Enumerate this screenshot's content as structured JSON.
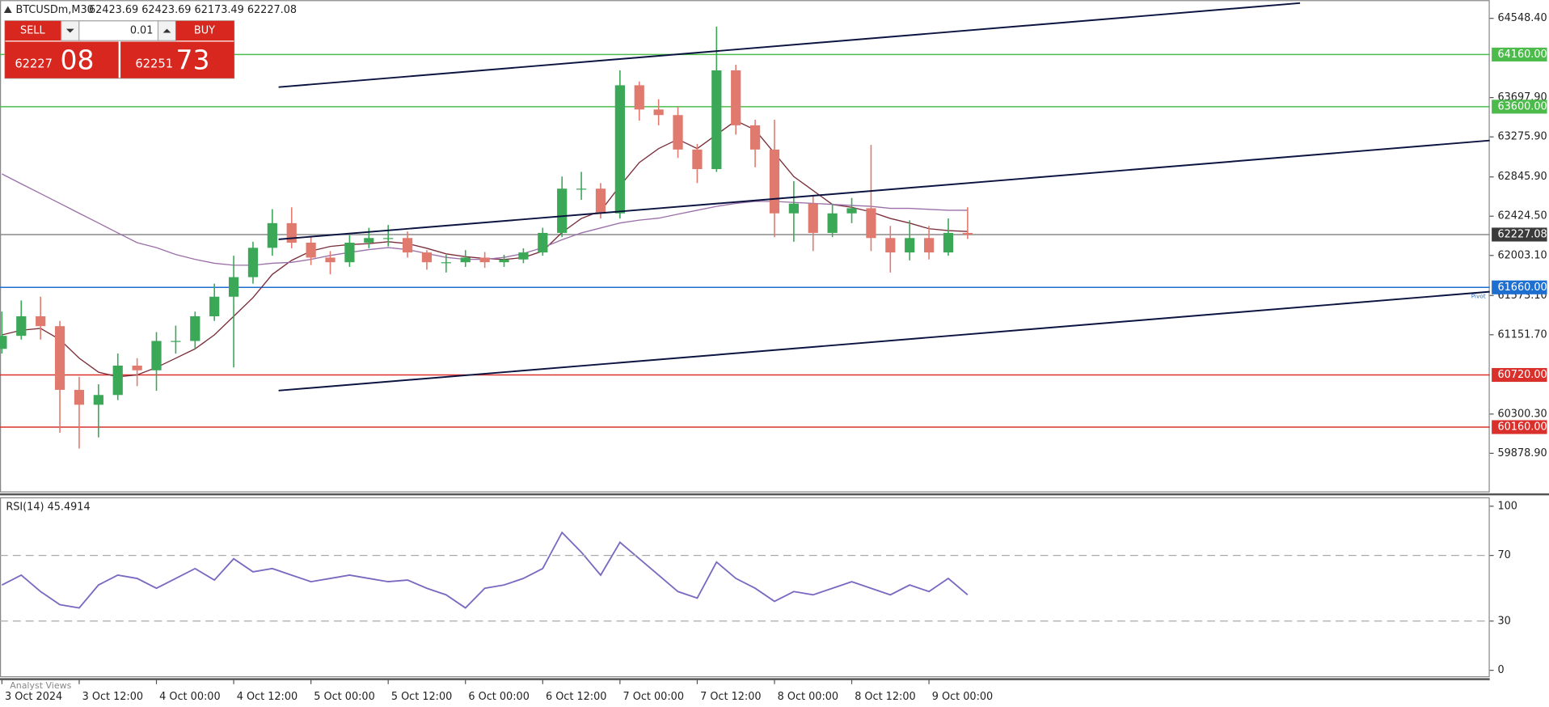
{
  "chart_data": [
    {
      "type": "candlestick",
      "title": "BTCUSDm,M30",
      "subtitle": "62423.69 62423.69 62173.49 62227.08",
      "up_color": "#3aa856",
      "down_color": "#e07a6e",
      "x": [
        0,
        3,
        6,
        9,
        12,
        15,
        18,
        21,
        24,
        27,
        30,
        33,
        36,
        39,
        42,
        45,
        48,
        51,
        54,
        57,
        60,
        63,
        66,
        69,
        72,
        75,
        78,
        81,
        84,
        87,
        90,
        93,
        96,
        99,
        102,
        105,
        108,
        111,
        114,
        117,
        120,
        123,
        126,
        129,
        132,
        135,
        138,
        141,
        144,
        147,
        150
      ],
      "open": [
        61000,
        61140,
        61350,
        61244,
        60560,
        60400,
        60505,
        60820,
        60770,
        61085,
        61085,
        61350,
        61560,
        61770,
        62085,
        62350,
        62140,
        61980,
        61930,
        62140,
        62190,
        62190,
        62035,
        61930,
        61930,
        61980,
        61930,
        61960,
        62035,
        62245,
        62720,
        62720,
        62455,
        63830,
        63570,
        63510,
        63140,
        62930,
        63990,
        63400,
        63140,
        62455,
        62560,
        62245,
        62455,
        62510,
        62190,
        62035,
        62190,
        62035,
        62245
      ],
      "high": [
        61400,
        61520,
        61560,
        61300,
        60700,
        60620,
        60950,
        60900,
        61180,
        61250,
        61400,
        61700,
        62000,
        62150,
        62500,
        62520,
        62200,
        62050,
        62220,
        62300,
        62330,
        62260,
        62060,
        62010,
        62060,
        62040,
        62010,
        62080,
        62300,
        62850,
        62900,
        62780,
        63990,
        63870,
        63680,
        63600,
        63200,
        64460,
        64050,
        63460,
        63460,
        62800,
        62640,
        62560,
        62620,
        63190,
        62320,
        62380,
        62320,
        62400,
        62520
      ],
      "low": [
        60950,
        61100,
        61100,
        60100,
        59930,
        60050,
        60450,
        60600,
        60550,
        60950,
        61000,
        61300,
        60800,
        61700,
        62000,
        62080,
        61900,
        61800,
        61880,
        62080,
        62100,
        61980,
        61850,
        61820,
        61880,
        61870,
        61880,
        61920,
        62000,
        62200,
        62600,
        62400,
        62400,
        63450,
        63400,
        63050,
        62780,
        62900,
        63300,
        62950,
        62200,
        62150,
        62050,
        62200,
        62350,
        62050,
        61820,
        61950,
        61960,
        62000,
        62180
      ],
      "close": [
        61140,
        61350,
        61244,
        60560,
        60400,
        60505,
        60820,
        60770,
        61085,
        61085,
        61350,
        61560,
        61770,
        62085,
        62350,
        62140,
        61980,
        61930,
        62140,
        62190,
        62190,
        62035,
        61930,
        61930,
        61980,
        61930,
        61960,
        62035,
        62245,
        62720,
        62720,
        62455,
        63830,
        63570,
        63510,
        63140,
        62930,
        63990,
        63400,
        63140,
        62455,
        62560,
        62245,
        62455,
        62510,
        62190,
        62035,
        62190,
        62035,
        62245,
        62227
      ],
      "overlays": [
        {
          "color": "#7a2e3a",
          "values": [
            61150,
            61200,
            61220,
            61100,
            60900,
            60750,
            60700,
            60720,
            60800,
            60900,
            61000,
            61150,
            61350,
            61550,
            61800,
            61950,
            62050,
            62100,
            62120,
            62130,
            62150,
            62130,
            62080,
            62020,
            61990,
            61970,
            61960,
            61980,
            62050,
            62250,
            62400,
            62480,
            62750,
            63000,
            63150,
            63250,
            63150,
            63300,
            63450,
            63350,
            63100,
            62850,
            62700,
            62550,
            62520,
            62470,
            62400,
            62350,
            62290,
            62270,
            62260
          ]
        },
        {
          "color": "#9b6fa8",
          "values": [
            62878,
            62772,
            62667,
            62562,
            62456,
            62351,
            62245,
            62140,
            62087,
            62013,
            61961,
            61919,
            61898,
            61898,
            61919,
            61929,
            61961,
            62003,
            62035,
            62066,
            62087,
            62066,
            62024,
            61982,
            61961,
            61961,
            61982,
            62024,
            62087,
            62172,
            62245,
            62298,
            62351,
            62382,
            62403,
            62446,
            62488,
            62530,
            62562,
            62583,
            62583,
            62572,
            62562,
            62551,
            62540,
            62530,
            62509,
            62509,
            62498,
            62488,
            62488
          ]
        }
      ],
      "xlim": [
        -0.3,
        231.1
      ],
      "xticks": [
        {
          "value": 0,
          "label": "3 Oct 2024"
        },
        {
          "value": 12,
          "label": "3 Oct 12:00"
        },
        {
          "value": 24,
          "label": "4 Oct 00:00"
        },
        {
          "value": 36,
          "label": "4 Oct 12:00"
        },
        {
          "value": 48,
          "label": "5 Oct 00:00"
        },
        {
          "value": 60,
          "label": "5 Oct 12:00"
        },
        {
          "value": 72,
          "label": "6 Oct 00:00"
        },
        {
          "value": 84,
          "label": "6 Oct 12:00"
        },
        {
          "value": 96,
          "label": "7 Oct 00:00"
        },
        {
          "value": 108,
          "label": "7 Oct 12:00"
        },
        {
          "value": 120,
          "label": "8 Oct 00:00"
        },
        {
          "value": 132,
          "label": "8 Oct 12:00"
        },
        {
          "value": 144,
          "label": "9 Oct 00:00"
        }
      ],
      "ylim": [
        59470,
        64744
      ],
      "yticks": [
        {
          "value": 64548.4,
          "label": "64548.40"
        },
        {
          "value": 63697.9,
          "label": "63697.90"
        },
        {
          "value": 63275.9,
          "label": "63275.90"
        },
        {
          "value": 62845.9,
          "label": "62845.90"
        },
        {
          "value": 62424.5,
          "label": "62424.50"
        },
        {
          "value": 62003.1,
          "label": "62003.10"
        },
        {
          "value": 61573.1,
          "label": "61573.10"
        },
        {
          "value": 61151.7,
          "label": "61151.70"
        },
        {
          "value": 60300.3,
          "label": "60300.30"
        },
        {
          "value": 59878.9,
          "label": "59878.90"
        }
      ],
      "levels": [
        {
          "value": 64160,
          "label": "64160.00",
          "color": "#4cbb4c"
        },
        {
          "value": 63600,
          "label": "63600.00",
          "color": "#4cbb4c"
        },
        {
          "value": 62227.08,
          "label": "62227.08",
          "color": "#3a3a3a"
        },
        {
          "value": 61660,
          "label": "61660.00",
          "color": "#1e6fd0",
          "tag": "Pivot"
        },
        {
          "value": 60720,
          "label": "60720.00",
          "color": "#d9302c"
        },
        {
          "value": 60160,
          "label": "60160.00",
          "color": "#d9302c"
        }
      ]
    },
    {
      "type": "line",
      "title": "RSI(14) 45.4914",
      "color": "#7b68c0",
      "x": [
        0,
        3,
        6,
        9,
        12,
        15,
        18,
        21,
        24,
        27,
        30,
        33,
        36,
        39,
        42,
        45,
        48,
        51,
        54,
        57,
        60,
        63,
        66,
        69,
        72,
        75,
        78,
        81,
        84,
        87,
        90,
        93,
        96,
        99,
        102,
        105,
        108,
        111,
        114,
        117,
        120,
        123,
        126,
        129,
        132,
        135,
        138,
        141,
        144,
        147,
        150
      ],
      "values": [
        52,
        58,
        48,
        40,
        38,
        52,
        58,
        56,
        50,
        56,
        62,
        55,
        68,
        60,
        62,
        58,
        54,
        56,
        58,
        56,
        54,
        55,
        50,
        46,
        38,
        50,
        52,
        56,
        62,
        84,
        72,
        58,
        78,
        68,
        58,
        48,
        44,
        66,
        56,
        50,
        42,
        48,
        46,
        50,
        54,
        50,
        46,
        52,
        48,
        56,
        46
      ],
      "xlim": [
        -0.3,
        231.1
      ],
      "ylim": [
        0,
        100
      ],
      "yticks": [
        100,
        70,
        30,
        0
      ]
    }
  ],
  "trade_panel": {
    "sell": "SELL",
    "buy": "BUY",
    "volume": "0.01",
    "bid_main": "62227",
    "bid_big": "08",
    "ask_main": "62251",
    "ask_big": "73"
  },
  "footer": "Analyst Views"
}
